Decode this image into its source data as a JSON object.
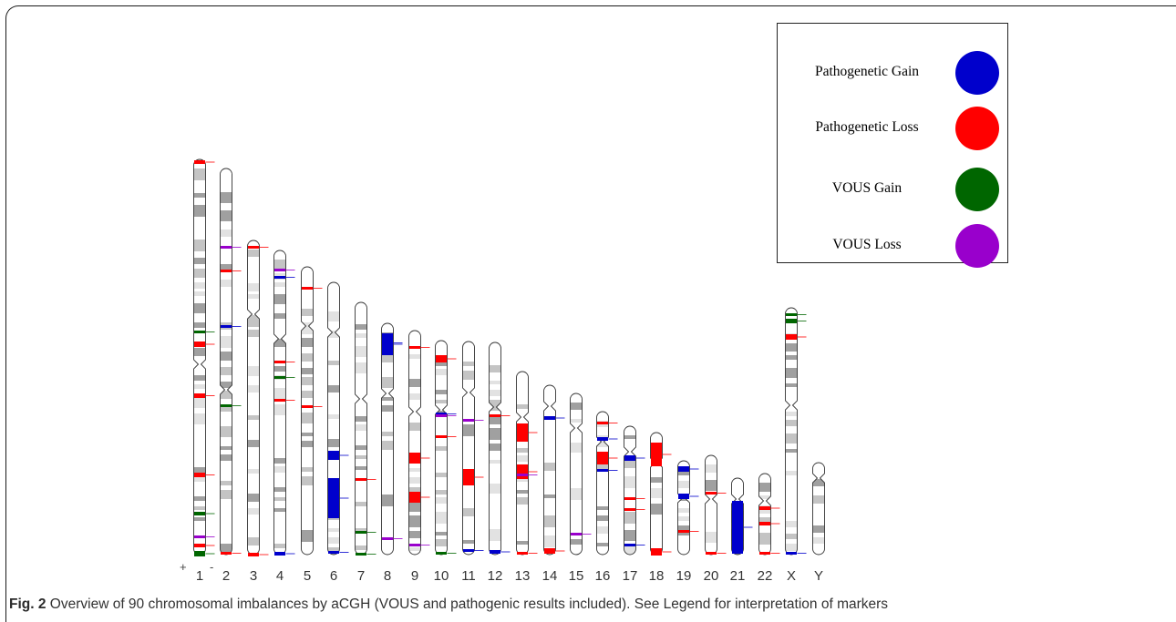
{
  "legend": [
    {
      "label": "Pathogenetic Gain",
      "color": "#0000cc"
    },
    {
      "label": "Pathogenetic Loss",
      "color": "#ff0000"
    },
    {
      "label": "VOUS Gain",
      "color": "#006600"
    },
    {
      "label": "VOUS Loss",
      "color": "#9900cc"
    }
  ],
  "strand_labels": {
    "plus": "+",
    "minus": "-"
  },
  "chromosomes": [
    "1",
    "2",
    "3",
    "4",
    "5",
    "6",
    "7",
    "8",
    "9",
    "10",
    "11",
    "12",
    "13",
    "14",
    "15",
    "16",
    "17",
    "18",
    "19",
    "20",
    "21",
    "22",
    "X",
    "Y"
  ],
  "caption": {
    "figure_label": "Fig. 2",
    "text": "Overview of 90 chromosomal imbalances by aCGH (VOUS and pathogenic results included). See Legend for interpretation of markers"
  }
}
